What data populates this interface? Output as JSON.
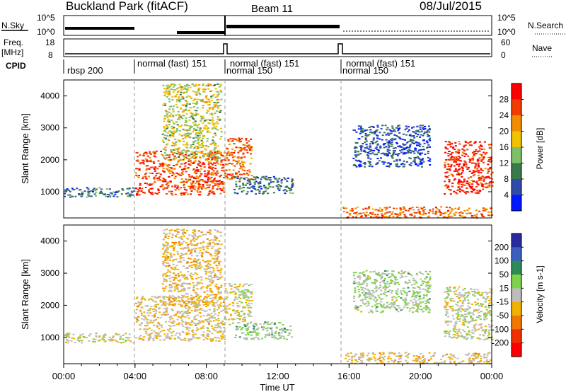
{
  "header": {
    "station": "Buckland Park (fitACF)",
    "beam": "Beam 11",
    "date": "08/Jul/2015"
  },
  "aux": {
    "nsky_label": "N.Sky",
    "nsky_ticks": [
      "10^5",
      "10^0"
    ],
    "nsearch_label": "N.Search",
    "nsearch_ticks": [
      "10^5",
      "10^0"
    ],
    "freq_label": "Freq.",
    "freq_unit": "[MHz]",
    "freq_ticks": [
      "18",
      "8"
    ],
    "nave_label": "Nave",
    "nave_ticks": [
      "60",
      "0"
    ],
    "cpid_label": "CPID",
    "modes": [
      {
        "start": "00:00",
        "label": "rbsp 200"
      },
      {
        "start": "04:00",
        "label": "normal (fast) 151"
      },
      {
        "start": "09:00",
        "label": "normal (fast) 151"
      },
      {
        "start": "09:00",
        "label": "normal 150"
      },
      {
        "start": "15:40",
        "label": "normal (fast) 151"
      },
      {
        "start": "15:40",
        "label": "normal 150"
      }
    ]
  },
  "chart_data": [
    {
      "type": "heatmap",
      "panel": "power",
      "ylabel": "Slant Range [km]",
      "yticks": [
        "1000",
        "2000",
        "3000",
        "4000"
      ],
      "ylim": [
        180,
        4500
      ],
      "colorbar": {
        "label": "Power [dB]",
        "ticks": [
          "4",
          "8",
          "12",
          "16",
          "20",
          "24",
          "28"
        ],
        "range": [
          0,
          32
        ],
        "colors": [
          "#0019ff",
          "#2f4aa8",
          "#3a7a4a",
          "#7fbf6a",
          "#f2c200",
          "#f28c00",
          "#f03c00",
          "#ff0000"
        ]
      },
      "regions": [
        {
          "t0": 0.0,
          "t1": 4.0,
          "r0": 850,
          "r1": 1150,
          "level": 8
        },
        {
          "t0": 4.0,
          "t1": 9.0,
          "r0": 900,
          "r1": 2300,
          "level": 26
        },
        {
          "t0": 5.5,
          "t1": 8.8,
          "r0": 2000,
          "r1": 4400,
          "level": 16
        },
        {
          "t0": 9.0,
          "t1": 10.5,
          "r0": 1400,
          "r1": 2700,
          "level": 24
        },
        {
          "t0": 9.5,
          "t1": 12.8,
          "r0": 950,
          "r1": 1500,
          "level": 8
        },
        {
          "t0": 15.6,
          "t1": 24.0,
          "r0": 200,
          "r1": 550,
          "level": 24
        },
        {
          "t0": 21.3,
          "t1": 24.0,
          "r0": 950,
          "r1": 2600,
          "level": 28
        },
        {
          "t0": 16.2,
          "t1": 20.5,
          "r0": 1800,
          "r1": 3100,
          "level": 6
        }
      ]
    },
    {
      "type": "heatmap",
      "panel": "velocity",
      "ylabel": "Slant Range [km]",
      "yticks": [
        "1000",
        "2000",
        "3000",
        "4000"
      ],
      "ylim": [
        180,
        4500
      ],
      "colorbar": {
        "label": "Velocity [m s-1]",
        "ticks": [
          "200",
          "100",
          "50",
          "15",
          "-15",
          "-50",
          "-100",
          "-200"
        ],
        "range": [
          -250,
          250
        ],
        "colors": [
          "#2a2aa0",
          "#3b5fbf",
          "#2e8b57",
          "#7fd34a",
          "#bdbdbd",
          "#f2b000",
          "#f07800",
          "#f03000",
          "#ff0000"
        ]
      },
      "regions": [
        {
          "t0": 0.0,
          "t1": 4.0,
          "r0": 850,
          "r1": 1150,
          "level": 0
        },
        {
          "t0": 4.0,
          "t1": 9.0,
          "r0": 900,
          "r1": 2300,
          "level": -30
        },
        {
          "t0": 5.5,
          "t1": 8.8,
          "r0": 2000,
          "r1": 4400,
          "level": -40
        },
        {
          "t0": 9.0,
          "t1": 10.5,
          "r0": 1400,
          "r1": 2700,
          "level": 0
        },
        {
          "t0": 9.5,
          "t1": 12.8,
          "r0": 950,
          "r1": 1500,
          "level": 40
        },
        {
          "t0": 15.6,
          "t1": 24.0,
          "r0": 200,
          "r1": 550,
          "level": -30
        },
        {
          "t0": 21.3,
          "t1": 24.0,
          "r0": 950,
          "r1": 2600,
          "level": 0
        },
        {
          "t0": 16.2,
          "t1": 20.5,
          "r0": 1800,
          "r1": 3100,
          "level": 30
        }
      ]
    }
  ],
  "time_axis": {
    "label": "Time UT",
    "ticks": [
      "00:00",
      "04:00",
      "08:00",
      "12:00",
      "16:00",
      "20:00",
      "00:00"
    ],
    "range_hours": [
      0,
      24
    ]
  }
}
